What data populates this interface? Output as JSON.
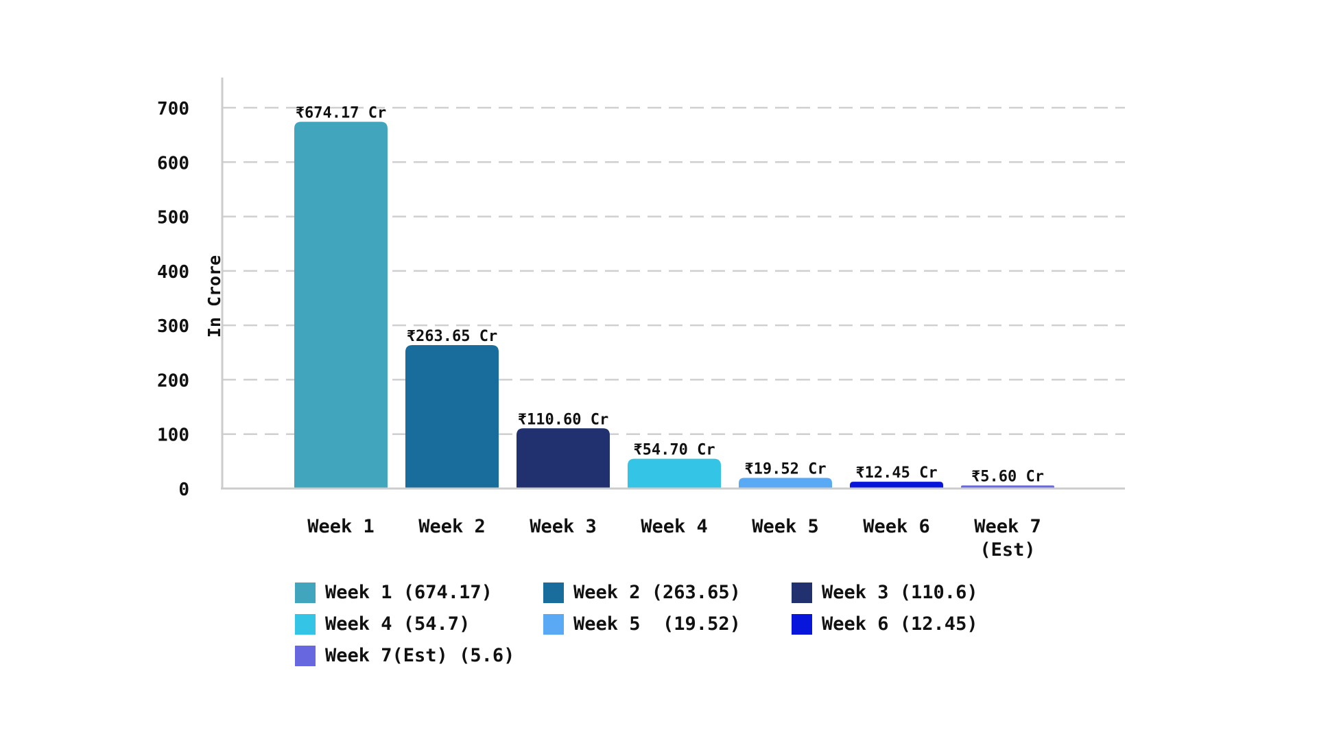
{
  "chart_data": {
    "type": "bar",
    "ylabel": "In Crore",
    "xlabel": "",
    "ylim": [
      0,
      700
    ],
    "yticks": [
      0,
      100,
      200,
      300,
      400,
      500,
      600,
      700
    ],
    "grid": true,
    "grid_style": "dashed-horizontal",
    "legend_position": "bottom",
    "categories": [
      "Week 1",
      "Week 2",
      "Week 3",
      "Week 4",
      "Week 5",
      "Week 6",
      "Week 7 (Est)"
    ],
    "category_lines": [
      [
        "Week 1"
      ],
      [
        "Week 2"
      ],
      [
        "Week 3"
      ],
      [
        "Week 4"
      ],
      [
        "Week 5"
      ],
      [
        "Week 6"
      ],
      [
        "Week 7",
        "(Est)"
      ]
    ],
    "values": [
      674.17,
      263.65,
      110.6,
      54.7,
      19.52,
      12.45,
      5.6
    ],
    "data_labels": [
      "₹674.17 Cr",
      "₹263.65 Cr",
      "₹110.60 Cr",
      "₹54.70 Cr",
      "₹19.52 Cr",
      "₹12.45 Cr",
      "₹5.60 Cr"
    ],
    "colors": [
      "#40a5bd",
      "#196d9c",
      "#213170",
      "#34c5e6",
      "#5aa9f4",
      "#0816dc",
      "#6768e0"
    ],
    "legend": [
      "Week 1 (674.17)",
      "Week 2 (263.65)",
      "Week 3 (110.6)",
      "Week 4 (54.7)",
      "Week 5  (19.52)",
      "Week 6 (12.45)",
      "Week 7(Est) (5.6)"
    ]
  }
}
